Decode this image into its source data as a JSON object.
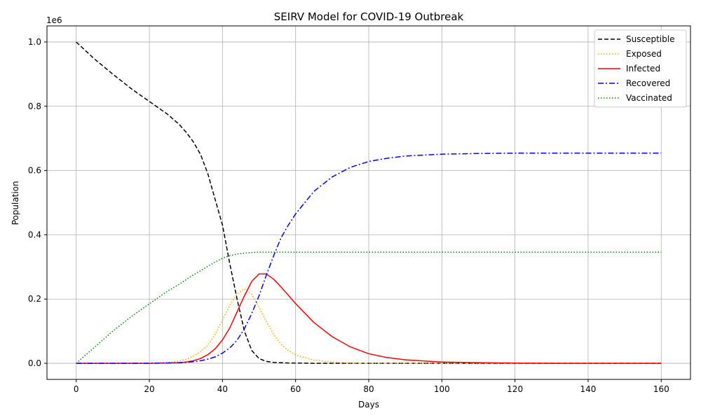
{
  "chart_data": {
    "type": "line",
    "title": "SEIRV Model for COVID-19 Outbreak",
    "xlabel": "Days",
    "ylabel": "Population",
    "y_offset_label": "1e6",
    "xlim": [
      -8,
      168
    ],
    "ylim": [
      -0.05,
      1.05
    ],
    "y_scale_multiplier": 1000000,
    "x_ticks": [
      0,
      20,
      40,
      60,
      80,
      100,
      120,
      140,
      160
    ],
    "y_ticks": [
      0.0,
      0.2,
      0.4,
      0.6,
      0.8,
      1.0
    ],
    "y_tick_labels": [
      "0.0",
      "0.2",
      "0.4",
      "0.6",
      "0.8",
      "1.0"
    ],
    "grid": true,
    "legend_position": "top-right",
    "x": [
      0,
      5,
      10,
      15,
      20,
      25,
      28,
      30,
      32,
      34,
      36,
      38,
      40,
      42,
      44,
      46,
      48,
      50,
      52,
      54,
      56,
      58,
      60,
      65,
      70,
      75,
      80,
      85,
      90,
      100,
      110,
      120,
      130,
      140,
      150,
      160
    ],
    "series": [
      {
        "name": "Susceptible",
        "color": "#000000",
        "dash": "6,3",
        "values": [
          1.0,
          0.947,
          0.9,
          0.855,
          0.815,
          0.775,
          0.745,
          0.72,
          0.69,
          0.65,
          0.59,
          0.51,
          0.43,
          0.31,
          0.2,
          0.1,
          0.04,
          0.015,
          0.006,
          0.003,
          0.002,
          0.001,
          0.001,
          0.0,
          0.0,
          0.0,
          0.0,
          0.0,
          0.0,
          0.0,
          0.0,
          0.0,
          0.0,
          0.0,
          0.0,
          0.0
        ]
      },
      {
        "name": "Exposed",
        "color": "#ffa500",
        "dash": "1.5,2.5",
        "values": [
          0.0,
          0.0,
          0.0,
          0.0,
          0.001,
          0.003,
          0.007,
          0.012,
          0.022,
          0.036,
          0.056,
          0.09,
          0.135,
          0.18,
          0.215,
          0.232,
          0.215,
          0.175,
          0.13,
          0.09,
          0.06,
          0.04,
          0.026,
          0.01,
          0.004,
          0.001,
          0.0,
          0.0,
          0.0,
          0.0,
          0.0,
          0.0,
          0.0,
          0.0,
          0.0,
          0.0
        ]
      },
      {
        "name": "Infected",
        "color": "#ff0000",
        "dash": "",
        "values": [
          0.0,
          0.0,
          0.0,
          0.0,
          0.0,
          0.001,
          0.002,
          0.004,
          0.008,
          0.015,
          0.027,
          0.045,
          0.073,
          0.11,
          0.16,
          0.21,
          0.255,
          0.278,
          0.278,
          0.262,
          0.238,
          0.212,
          0.186,
          0.127,
          0.083,
          0.051,
          0.03,
          0.018,
          0.011,
          0.004,
          0.002,
          0.001,
          0.0,
          0.0,
          0.0,
          0.0
        ]
      },
      {
        "name": "Recovered",
        "color": "#0000ff",
        "dash": "8,3,2,3",
        "values": [
          0.0,
          0.0,
          0.0,
          0.0,
          0.0,
          0.001,
          0.002,
          0.003,
          0.005,
          0.008,
          0.013,
          0.02,
          0.032,
          0.048,
          0.072,
          0.108,
          0.155,
          0.21,
          0.275,
          0.335,
          0.39,
          0.43,
          0.465,
          0.535,
          0.58,
          0.61,
          0.628,
          0.638,
          0.645,
          0.651,
          0.653,
          0.654,
          0.654,
          0.654,
          0.654,
          0.654
        ]
      },
      {
        "name": "Vaccinated",
        "color": "#008000",
        "dash": "1.5,2.5",
        "values": [
          0.0,
          0.05,
          0.1,
          0.145,
          0.185,
          0.225,
          0.245,
          0.26,
          0.275,
          0.288,
          0.302,
          0.315,
          0.327,
          0.335,
          0.34,
          0.343,
          0.345,
          0.346,
          0.346,
          0.346,
          0.346,
          0.346,
          0.346,
          0.346,
          0.346,
          0.346,
          0.346,
          0.346,
          0.346,
          0.346,
          0.346,
          0.346,
          0.346,
          0.346,
          0.346,
          0.346
        ]
      }
    ]
  }
}
